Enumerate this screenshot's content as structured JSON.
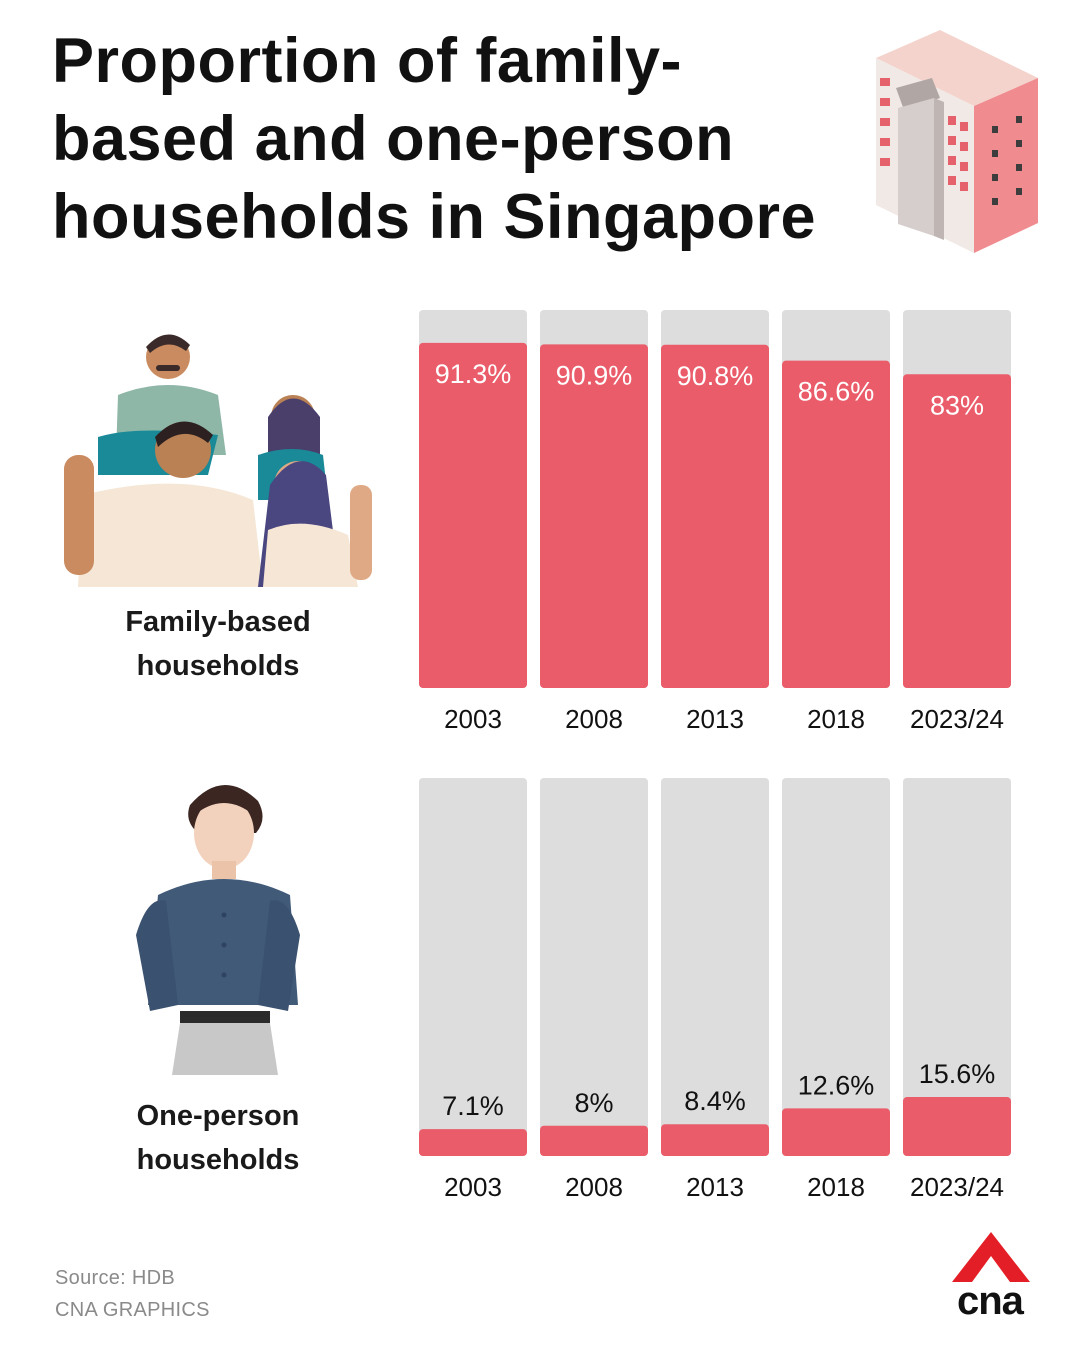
{
  "title": "Proportion of family-based and one-person households in Singapore",
  "colors": {
    "bar": "#ea5c69",
    "track": "#dddddd",
    "label_on_bar": "#ffffff",
    "label_off_bar": "#111111"
  },
  "chart_data": [
    {
      "type": "bar",
      "label": "Family-based households",
      "categories": [
        "2003",
        "2008",
        "2013",
        "2018",
        "2023/24"
      ],
      "values": [
        91.3,
        90.9,
        90.8,
        86.6,
        83
      ],
      "value_labels": [
        "91.3%",
        "90.9%",
        "90.8%",
        "86.6%",
        "83%"
      ],
      "ylim": [
        0,
        100
      ],
      "grid": false
    },
    {
      "type": "bar",
      "label": "One-person households",
      "categories": [
        "2003",
        "2008",
        "2013",
        "2018",
        "2023/24"
      ],
      "values": [
        7.1,
        8,
        8.4,
        12.6,
        15.6
      ],
      "value_labels": [
        "7.1%",
        "8%",
        "8.4%",
        "12.6%",
        "15.6%"
      ],
      "ylim": [
        0,
        100
      ],
      "grid": false
    }
  ],
  "footer": {
    "source": "Source: HDB",
    "credit": "CNA GRAPHICS"
  },
  "logo": {
    "text": "cna",
    "icon": "cna-logo-icon"
  },
  "icons": [
    "building-icon",
    "family-illustration",
    "man-illustration"
  ]
}
